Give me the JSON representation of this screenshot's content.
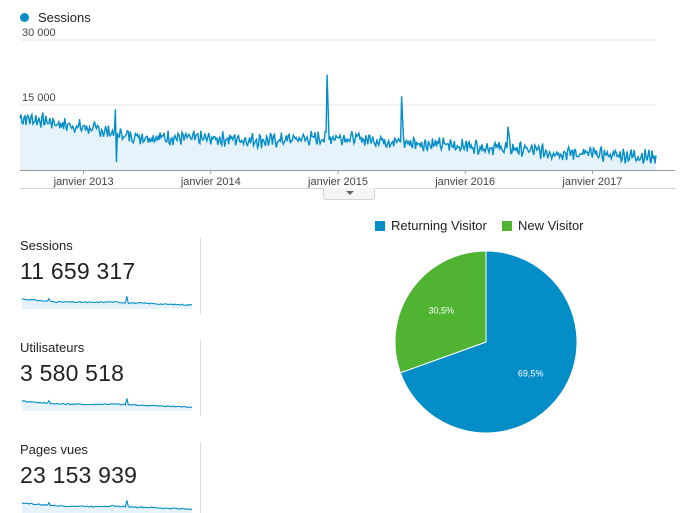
{
  "legend": {
    "series_label": "Sessions"
  },
  "metrics": [
    {
      "label": "Sessions",
      "value": "11 659 317"
    },
    {
      "label": "Utilisateurs",
      "value": "3 580 518"
    },
    {
      "label": "Pages vues",
      "value": "23 153 939"
    }
  ],
  "colors": {
    "sessions": "#058dc7",
    "area": "#e6f3fa",
    "returning": "#058dc7",
    "new": "#50b432"
  },
  "chart_data": [
    {
      "type": "area",
      "series": [
        {
          "name": "Sessions"
        }
      ],
      "y_tick_labels": [
        "15 000",
        "30 000"
      ],
      "y_ticks": [
        15000,
        30000
      ],
      "ylim": [
        0,
        30000
      ],
      "x_tick_labels": [
        "janvier 2013",
        "janvier 2014",
        "janvier 2015",
        "janvier 2016",
        "janvier 2017"
      ],
      "x_ticks": [
        "2013-01",
        "2014-01",
        "2015-01",
        "2016-01",
        "2017-01"
      ],
      "x": [
        "2012-07",
        "2012-09",
        "2012-11",
        "2013-01",
        "2013-03",
        "2013-04",
        "2013-05",
        "2013-07",
        "2013-09",
        "2013-11",
        "2014-01",
        "2014-03",
        "2014-05",
        "2014-07",
        "2014-09",
        "2014-11",
        "2015-01",
        "2015-03",
        "2015-05",
        "2015-07",
        "2015-09",
        "2015-11",
        "2016-01",
        "2016-03",
        "2016-05",
        "2016-07",
        "2016-09",
        "2016-11",
        "2017-01",
        "2017-03",
        "2017-05",
        "2017-07"
      ],
      "values": [
        12000,
        11500,
        10500,
        9800,
        9000,
        8500,
        8000,
        7600,
        7500,
        7300,
        7200,
        7200,
        6900,
        6800,
        7200,
        7300,
        7600,
        7200,
        6900,
        6400,
        6100,
        5800,
        5600,
        5300,
        5100,
        4600,
        4100,
        3900,
        3700,
        3500,
        3300,
        3000
      ],
      "peaks": [
        {
          "x": "2013-04",
          "value": 14000
        },
        {
          "x": "2014-12",
          "value": 22000
        },
        {
          "x": "2015-07",
          "value": 17000
        },
        {
          "x": "2016-05",
          "value": 10000
        }
      ],
      "grid": true
    },
    {
      "type": "pie",
      "categories": [
        "Returning Visitor",
        "New Visitor"
      ],
      "values": [
        69.5,
        30.5
      ],
      "data_labels": [
        "69,5%",
        "30,5%"
      ],
      "legend": "top"
    }
  ]
}
